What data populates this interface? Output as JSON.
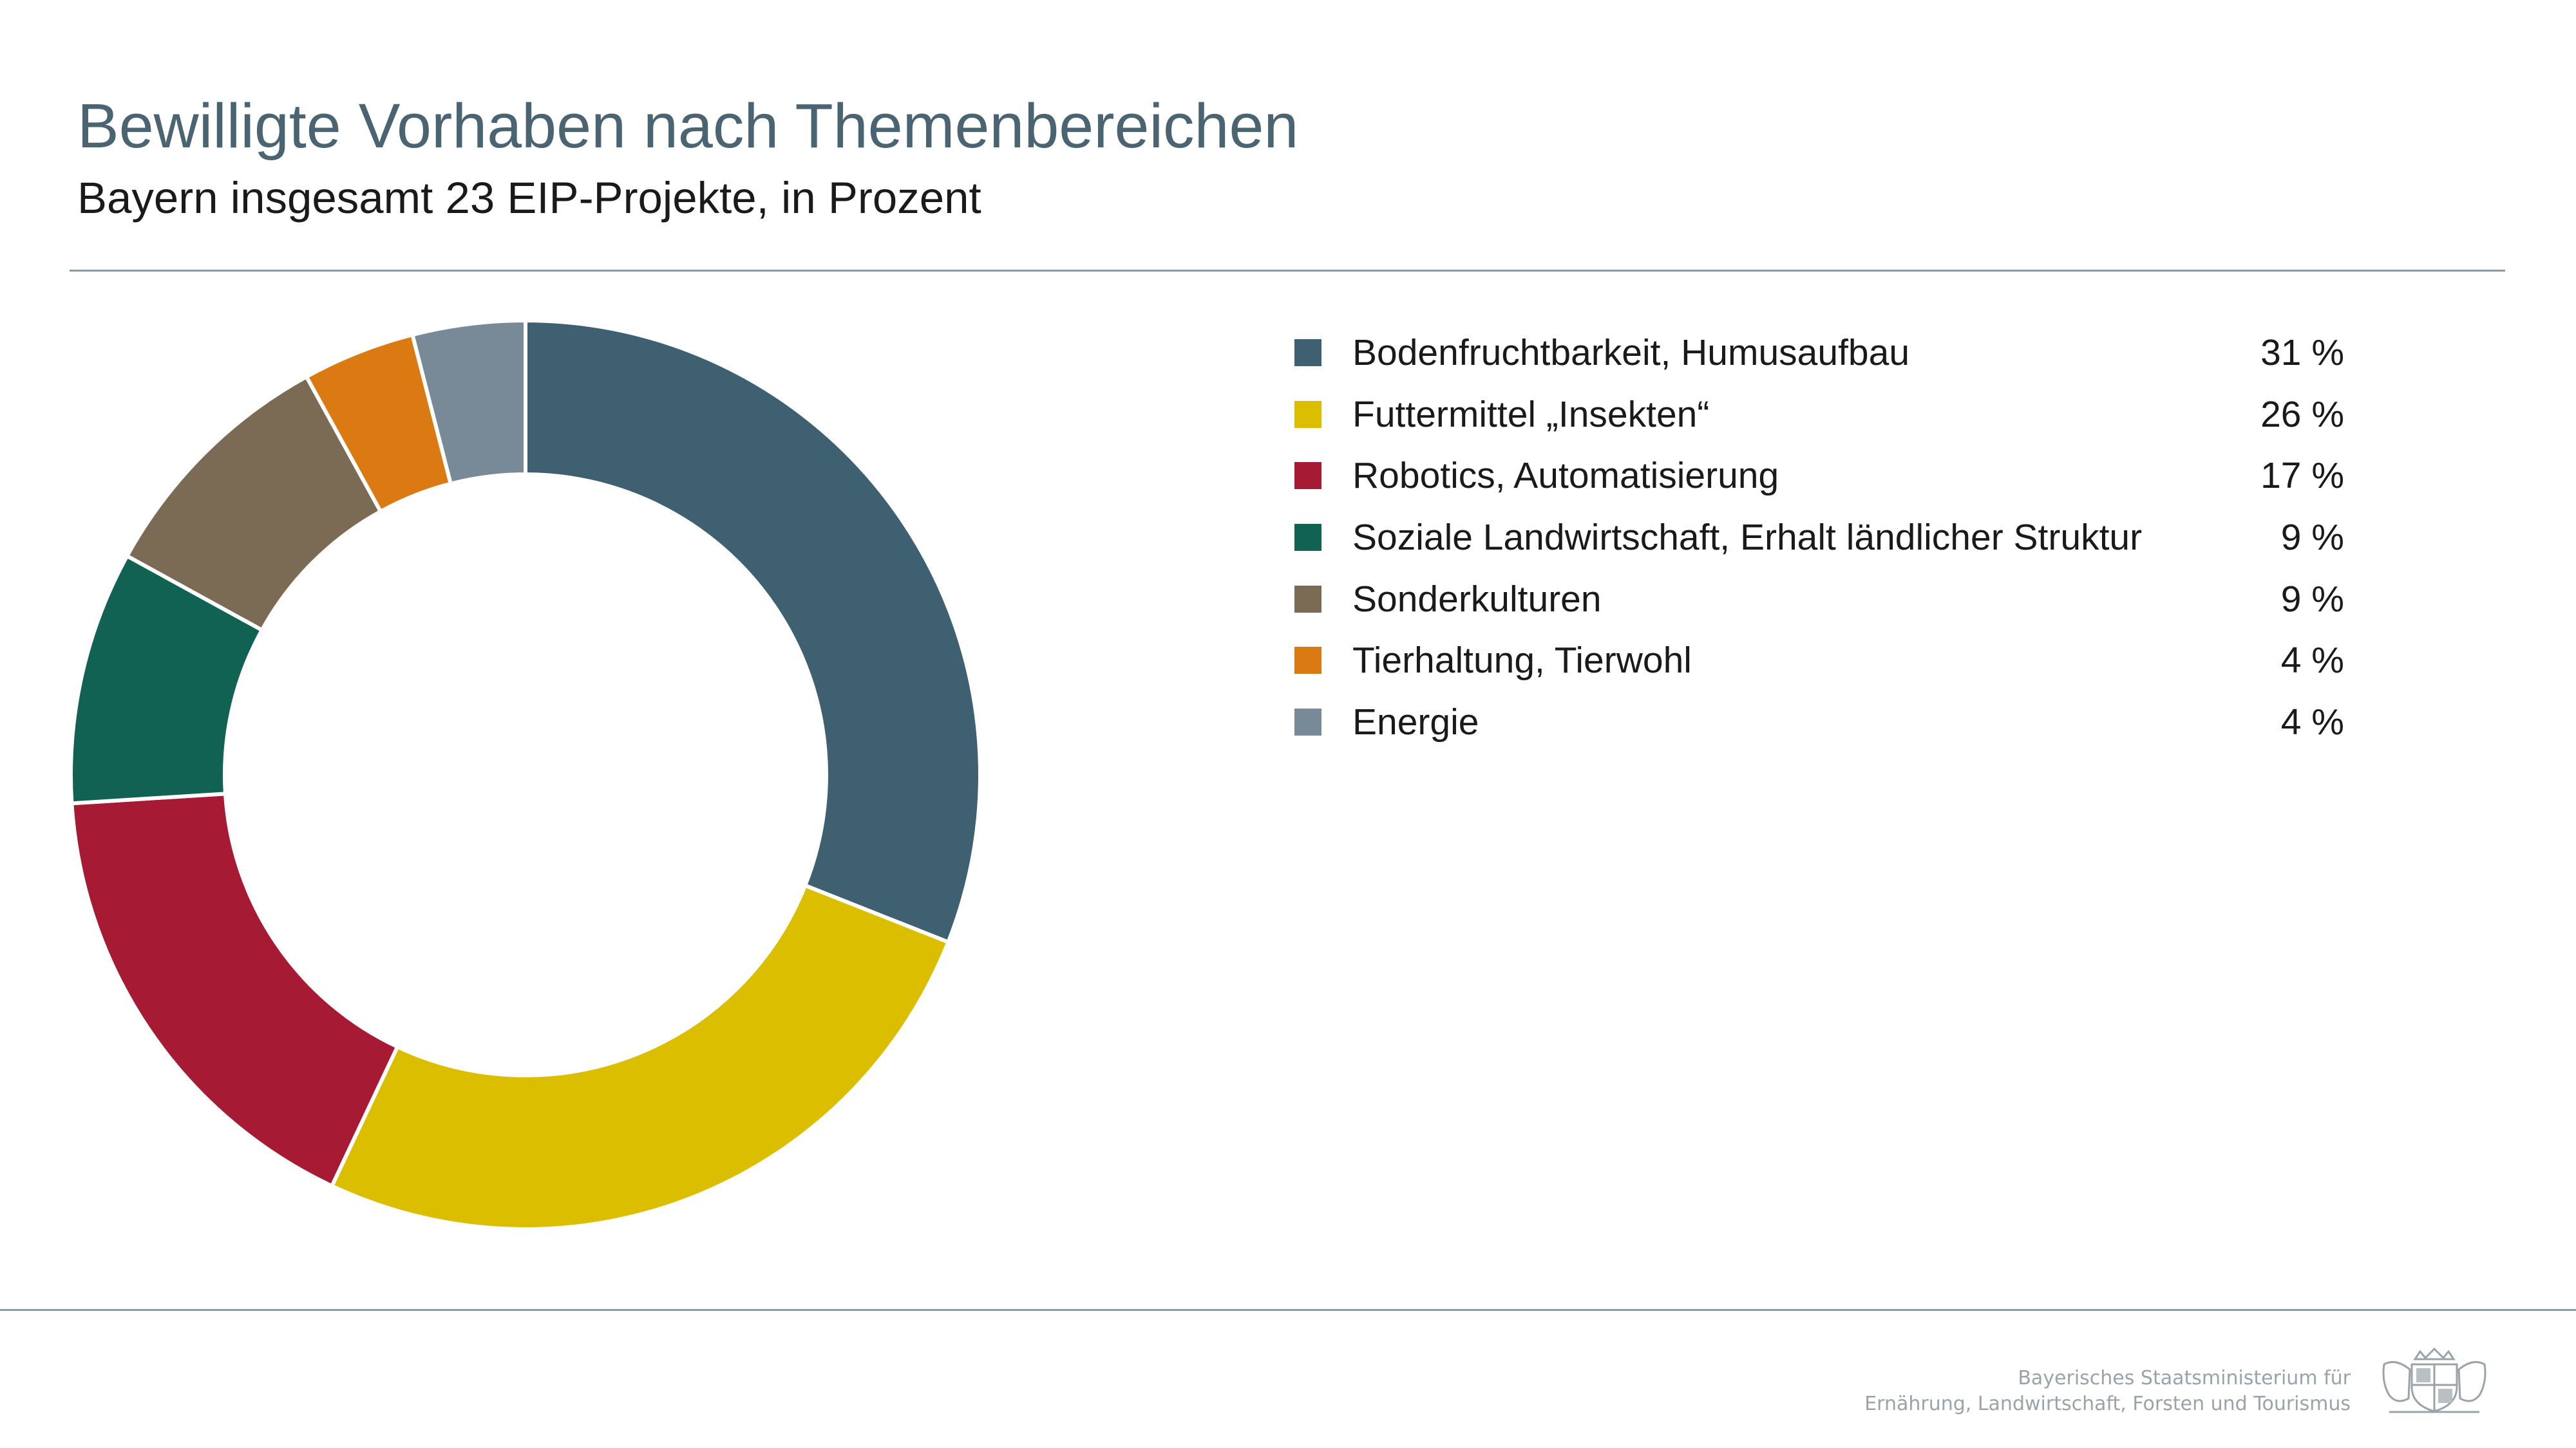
{
  "chart_data": {
    "type": "pie",
    "title": "Bewilligte Vorhaben nach Themenbereichen",
    "subtitle": "Bayern insgesamt 23 EIP-Projekte, in Prozent",
    "unit": "%",
    "legend_position": "right",
    "series": [
      {
        "name": "Bodenfruchtbarkeit, Humusaufbau",
        "value": 31,
        "label": "31 %",
        "color": "#3e6071"
      },
      {
        "name": "Futtermittel „Insekten“",
        "value": 26,
        "label": "26 %",
        "color": "#dcbe00"
      },
      {
        "name": "Robotics, Automatisierung",
        "value": 17,
        "label": "17 %",
        "color": "#a61a34"
      },
      {
        "name": "Soziale Landwirtschaft, Erhalt ländlicher Struktur",
        "value": 9,
        "label": "9 %",
        "color": "#126254"
      },
      {
        "name": "Sonderkulturen",
        "value": 9,
        "label": "9 %",
        "color": "#7b6b55"
      },
      {
        "name": "Tierhaltung, Tierwohl",
        "value": 4,
        "label": "4 %",
        "color": "#db7a12"
      },
      {
        "name": "Energie",
        "value": 4,
        "label": "4 %",
        "color": "#788a97"
      }
    ]
  },
  "footer": {
    "line1": "Bayerisches Staatsministerium für",
    "line2": "Ernährung, Landwirtschaft, Forsten und Tourismus"
  },
  "logo_icon": "bavarian-coat-of-arms-icon"
}
